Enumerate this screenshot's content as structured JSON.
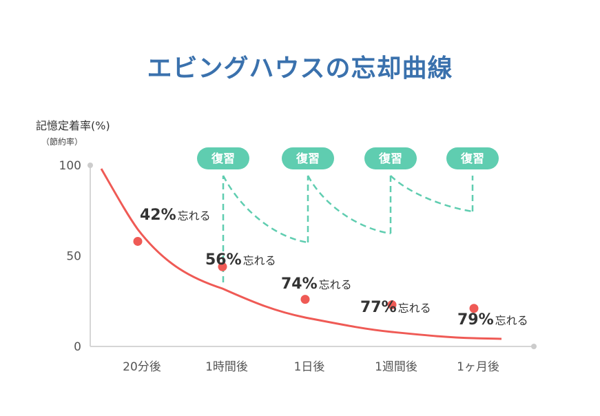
{
  "title": "エビングハウスの忘却曲線",
  "chart_data": {
    "type": "line",
    "title": "エビングハウスの忘却曲線",
    "ylabel": "記憶定着率(%)",
    "ylabel_sub": "（節約率）",
    "ylim": [
      0,
      100
    ],
    "y_ticks": [
      "100",
      "50",
      "0"
    ],
    "categories": [
      "20分後",
      "1時間後",
      "1日後",
      "1週間後",
      "1ヶ月後"
    ],
    "series": [
      {
        "color": "#ef5a55",
        "values": [
          58,
          44,
          26,
          23,
          21
        ]
      }
    ],
    "annotations": [
      {
        "category": "20分後",
        "percent": "42%",
        "suffix": "忘れる"
      },
      {
        "category": "1時間後",
        "percent": "56%",
        "suffix": "忘れる"
      },
      {
        "category": "1日後",
        "percent": "74%",
        "suffix": "忘れる"
      },
      {
        "category": "1週間後",
        "percent": "77%",
        "suffix": "忘れる"
      },
      {
        "category": "1ヶ月後",
        "percent": "79%",
        "suffix": "忘れる"
      }
    ],
    "review": {
      "label": "復習",
      "color": "#5fcdb0"
    }
  }
}
